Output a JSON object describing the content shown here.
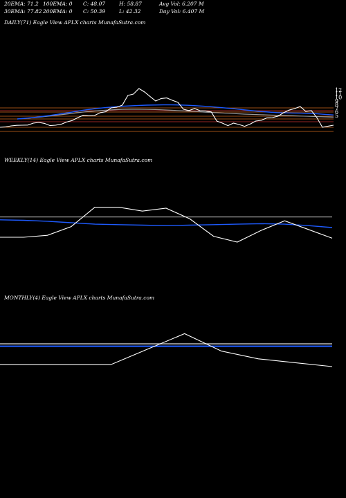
{
  "header": {
    "col1": [
      "20EMA: 71.2",
      "30EMA: 77.82"
    ],
    "col2": [
      "100EMA: 0",
      "200EMA: 0"
    ],
    "col3": [
      "C: 48.07",
      "C: 50.39"
    ],
    "col4": [
      "H: 58.87",
      "L: 42.32"
    ],
    "col5": [
      "Avg Vol: 6.207 M",
      "Day Vol: 6.407 M"
    ]
  },
  "colors": {
    "price": "#ffffff",
    "ema_blue": "#1e5bff",
    "ema_grey": "#9a9a9a",
    "level_orange": "#d2691e",
    "level_red": "#c83232"
  },
  "chart_data": [
    {
      "type": "line",
      "label": "DAILY(71) Eagle  View  APLX  charts MunafaSutra.com",
      "right_labels": [
        "12",
        "11",
        "10",
        "9",
        "8",
        "7",
        "6",
        "5"
      ],
      "series": [
        {
          "values": [
            58,
            58.3,
            59,
            59.4,
            59.5,
            59.6,
            61,
            61.5,
            60.8,
            59.2,
            59.5,
            60.2,
            61.8,
            62.9,
            65,
            66.7,
            66.3,
            66.5,
            68.5,
            69.2,
            72,
            72.5,
            74,
            81,
            82,
            86,
            83.5,
            80.2,
            77,
            78.8,
            79.2,
            77.5,
            76,
            71,
            70.1,
            71.5,
            70,
            69.8,
            69.1,
            62.5,
            61,
            59.2,
            61,
            60,
            58.7,
            60.3,
            62.5,
            63,
            64.8,
            65,
            66,
            68.5,
            70.4,
            71.5,
            73,
            69.5,
            70.1,
            65,
            58,
            58.8,
            59.5
          ]
        },
        {
          "values": [
            64,
            64.5,
            65,
            65.8,
            66.5,
            67.4,
            68.3,
            69.2,
            70.2,
            71,
            71.7,
            72.3,
            72.8,
            73.2,
            73.5,
            73.8,
            74,
            74.1,
            74.2,
            74.2,
            74.1,
            73.9,
            73.6,
            73.2,
            72.8,
            72.3,
            71.8,
            71.2,
            70.6,
            70,
            69.4,
            69,
            68.6,
            68.4,
            68.3,
            68.2,
            68,
            67.7,
            67.3,
            66.9
          ]
        },
        {
          "values": [
            64,
            64.4,
            64.9,
            65.5,
            66.1,
            66.8,
            67.5,
            68.2,
            68.9,
            69.5,
            70,
            70.4,
            70.7,
            70.9,
            71,
            71,
            70.9,
            70.8,
            70.6,
            70.3,
            70,
            69.7,
            69.4,
            69,
            68.7,
            68.4,
            68.1,
            67.8,
            67.5,
            67.3,
            67.1,
            66.9,
            66.7,
            66.5,
            66.3,
            66.1,
            65.9,
            65.7,
            65.5,
            65.3
          ]
        }
      ],
      "ylim": [
        50,
        100
      ],
      "levels": [
        72,
        70,
        69,
        66,
        64,
        62,
        58,
        55
      ]
    },
    {
      "type": "line",
      "label": "WEEKLY(14) Eagle  View  APLX  charts MunafaSutra.com",
      "series": [
        {
          "values": [
            55,
            55,
            57,
            66,
            86,
            86,
            82,
            85,
            74,
            56,
            50,
            62,
            72,
            63,
            54
          ]
        },
        {
          "values": [
            73,
            72.5,
            71.5,
            70,
            68.5,
            68,
            67.5,
            67,
            67.5,
            68,
            68.5,
            69,
            68.5,
            67,
            65
          ]
        },
        {
          "values": [
            76,
            76,
            76,
            76,
            76,
            76,
            76,
            76,
            76,
            76,
            76,
            76,
            76,
            76,
            76
          ]
        }
      ],
      "ylim": [
        0,
        100
      ]
    },
    {
      "type": "line",
      "label": "MONTHLY(4) Eagle  View  APLX  charts MunafaSutra.com",
      "series": [
        {
          "values": [
            52,
            52,
            52,
            52,
            68,
            84,
            66,
            58,
            54,
            50
          ]
        },
        {
          "values": [
            71,
            71,
            71,
            71,
            71,
            71,
            71,
            71,
            71,
            71
          ]
        },
        {
          "values": [
            73.5,
            73.5,
            73.5,
            73.5,
            73.5,
            73.5,
            73.5,
            73.5,
            73.5,
            73.5
          ]
        }
      ],
      "ylim": [
        0,
        100
      ]
    }
  ]
}
